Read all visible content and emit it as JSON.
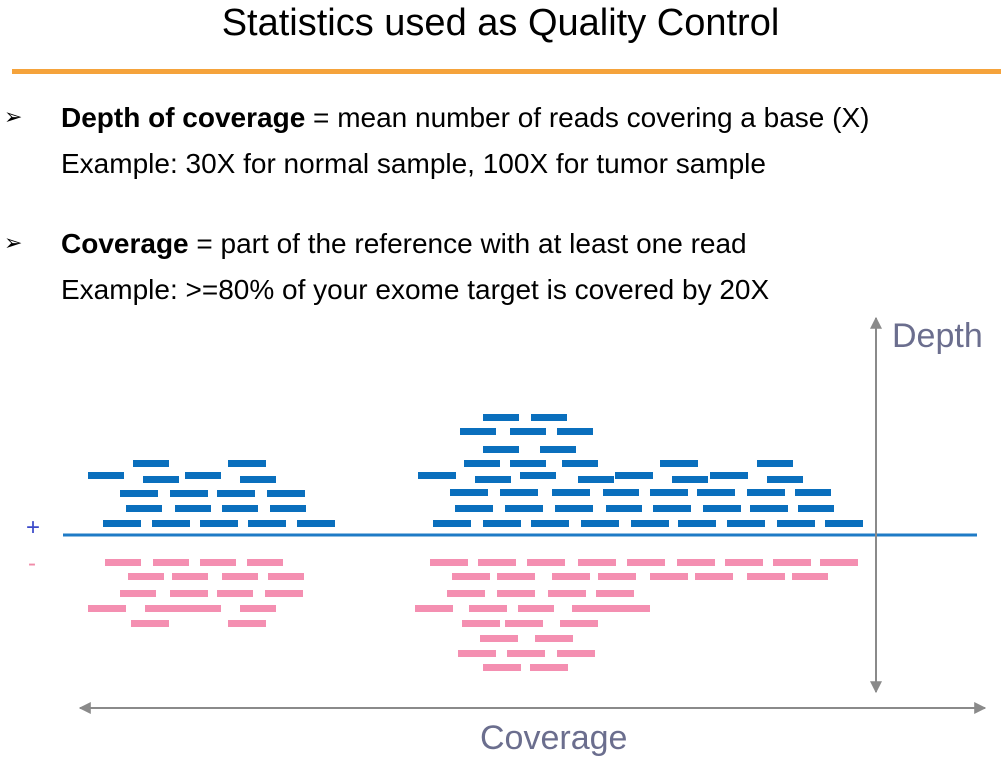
{
  "slide": {
    "title": "Statistics used as Quality Control"
  },
  "bullets": [
    {
      "marker": "➢",
      "term": "Depth of coverage",
      "definition": " = mean number of reads covering a base (X)",
      "example": "Example: 30X for normal sample, 100X for tumor sample"
    },
    {
      "marker": "➢",
      "term": "Coverage",
      "definition": " = part of the reference with at least one read",
      "example": "Example: >=80% of your exome target is covered by 20X"
    }
  ],
  "diagram": {
    "plus_strand_label": "+",
    "minus_strand_label": "-",
    "depth_axis_label": "Depth",
    "coverage_axis_label": "Coverage",
    "colors": {
      "plus_reads": "#0a6fbd",
      "minus_reads": "#f48fb1",
      "reference_line": "#1f7bc6",
      "axis_arrows": "#8a8a8a",
      "title_rule": "#f5a33b"
    }
  }
}
